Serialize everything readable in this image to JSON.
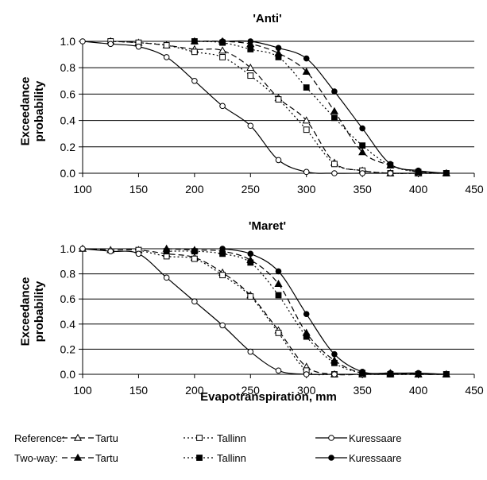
{
  "legend": {
    "groups": [
      {
        "label": "Reference:",
        "entries": [
          {
            "name": "Tartu",
            "style": "ref-tartu"
          },
          {
            "name": "Tallinn",
            "style": "ref-tallinn"
          },
          {
            "name": "Kuressaare",
            "style": "ref-kuressaare"
          }
        ]
      },
      {
        "label": "Two-way:",
        "entries": [
          {
            "name": "Tartu",
            "style": "two-tartu"
          },
          {
            "name": "Tallinn",
            "style": "two-tallinn"
          },
          {
            "name": "Kuressaare",
            "style": "two-kuressaare"
          }
        ]
      }
    ]
  },
  "chart_data": [
    {
      "type": "line",
      "title": "'Anti'",
      "xlabel": "",
      "ylabel": "Exceedance probability",
      "xlim": [
        100,
        450
      ],
      "ylim": [
        0,
        1
      ],
      "xticks": [
        100,
        150,
        200,
        250,
        300,
        350,
        400,
        450
      ],
      "yticks": [
        "0.0",
        "0.2",
        "0.4",
        "0.6",
        "0.8",
        "1.0"
      ],
      "grid": "horizontal",
      "series": [
        {
          "name": "Reference: Tartu",
          "style": "ref-tartu",
          "x": [
            125,
            150,
            175,
            200,
            225,
            250,
            275,
            300,
            325,
            350,
            375,
            400,
            425
          ],
          "y": [
            1.0,
            0.99,
            0.97,
            0.94,
            0.93,
            0.8,
            0.57,
            0.4,
            0.08,
            0.02,
            0.0,
            0.0,
            0.0
          ]
        },
        {
          "name": "Reference: Tallinn",
          "style": "ref-tallinn",
          "x": [
            125,
            150,
            175,
            200,
            225,
            250,
            275,
            300,
            325,
            350,
            375,
            400,
            425
          ],
          "y": [
            1.0,
            0.99,
            0.97,
            0.92,
            0.88,
            0.74,
            0.56,
            0.33,
            0.07,
            0.02,
            0.0,
            0.0,
            0.0
          ]
        },
        {
          "name": "Reference: Kuressaare",
          "style": "ref-kuressaare",
          "x": [
            100,
            125,
            150,
            175,
            200,
            225,
            250,
            275,
            300,
            325,
            350,
            375,
            400,
            425
          ],
          "y": [
            1.0,
            0.98,
            0.96,
            0.88,
            0.7,
            0.51,
            0.36,
            0.1,
            0.01,
            0.0,
            0.0,
            0.0,
            0.0,
            0.0
          ]
        },
        {
          "name": "Two-way: Tartu",
          "style": "two-tartu",
          "x": [
            200,
            225,
            250,
            275,
            300,
            325,
            350,
            375,
            400,
            425
          ],
          "y": [
            1.0,
            1.0,
            0.98,
            0.91,
            0.77,
            0.47,
            0.16,
            0.06,
            0.01,
            0.0
          ]
        },
        {
          "name": "Two-way: Tallinn",
          "style": "two-tallinn",
          "x": [
            200,
            225,
            250,
            275,
            300,
            325,
            350,
            375,
            400,
            425
          ],
          "y": [
            1.0,
            0.99,
            0.94,
            0.88,
            0.65,
            0.42,
            0.21,
            0.06,
            0.01,
            0.0
          ]
        },
        {
          "name": "Two-way: Kuressaare",
          "style": "two-kuressaare",
          "x": [
            200,
            225,
            250,
            275,
            300,
            325,
            350,
            375,
            400,
            425
          ],
          "y": [
            1.0,
            1.0,
            1.0,
            0.95,
            0.87,
            0.62,
            0.34,
            0.07,
            0.02,
            0.0
          ]
        }
      ]
    },
    {
      "type": "line",
      "title": "'Maret'",
      "xlabel": "Evapotranspiration, mm",
      "ylabel": "Exceedance probability",
      "xlim": [
        100,
        450
      ],
      "ylim": [
        0,
        1
      ],
      "xticks": [
        100,
        150,
        200,
        250,
        300,
        350,
        400,
        450
      ],
      "yticks": [
        "0.0",
        "0.2",
        "0.4",
        "0.6",
        "0.8",
        "1.0"
      ],
      "grid": "horizontal",
      "series": [
        {
          "name": "Reference: Tartu",
          "style": "ref-tartu",
          "x": [
            100,
            125,
            150,
            175,
            200,
            225,
            250,
            275,
            300,
            325,
            350,
            375,
            400,
            425
          ],
          "y": [
            1.0,
            0.99,
            0.99,
            0.96,
            0.93,
            0.81,
            0.63,
            0.35,
            0.06,
            0.0,
            0.0,
            0.0,
            0.0,
            0.0
          ]
        },
        {
          "name": "Reference: Tallinn",
          "style": "ref-tallinn",
          "x": [
            150,
            175,
            200,
            225,
            250,
            275,
            300,
            325,
            350,
            375,
            400,
            425
          ],
          "y": [
            0.99,
            0.94,
            0.92,
            0.79,
            0.62,
            0.33,
            0.03,
            0.0,
            0.0,
            0.0,
            0.0,
            0.0
          ]
        },
        {
          "name": "Reference: Kuressaare",
          "style": "ref-kuressaare",
          "x": [
            100,
            125,
            150,
            175,
            200,
            225,
            250,
            275,
            300,
            325,
            350,
            375,
            400,
            425
          ],
          "y": [
            1.0,
            0.98,
            0.96,
            0.77,
            0.58,
            0.39,
            0.18,
            0.03,
            0.0,
            0.0,
            0.0,
            0.0,
            0.0,
            0.0
          ]
        },
        {
          "name": "Two-way: Tartu",
          "style": "two-tartu",
          "x": [
            175,
            200,
            225,
            250,
            275,
            300,
            325,
            350,
            375,
            400,
            425
          ],
          "y": [
            1.0,
            0.99,
            0.98,
            0.91,
            0.72,
            0.33,
            0.11,
            0.01,
            0.01,
            0.0,
            0.0
          ]
        },
        {
          "name": "Two-way: Tallinn",
          "style": "two-tallinn",
          "x": [
            175,
            200,
            225,
            250,
            275,
            300,
            325,
            350,
            375,
            400,
            425
          ],
          "y": [
            0.98,
            0.98,
            0.96,
            0.89,
            0.63,
            0.3,
            0.09,
            0.01,
            0.0,
            0.0,
            0.0
          ]
        },
        {
          "name": "Two-way: Kuressaare",
          "style": "two-kuressaare",
          "x": [
            225,
            250,
            275,
            300,
            325,
            350,
            375,
            400,
            425
          ],
          "y": [
            1.0,
            0.96,
            0.82,
            0.48,
            0.16,
            0.02,
            0.01,
            0.01,
            0.0
          ]
        }
      ]
    }
  ]
}
